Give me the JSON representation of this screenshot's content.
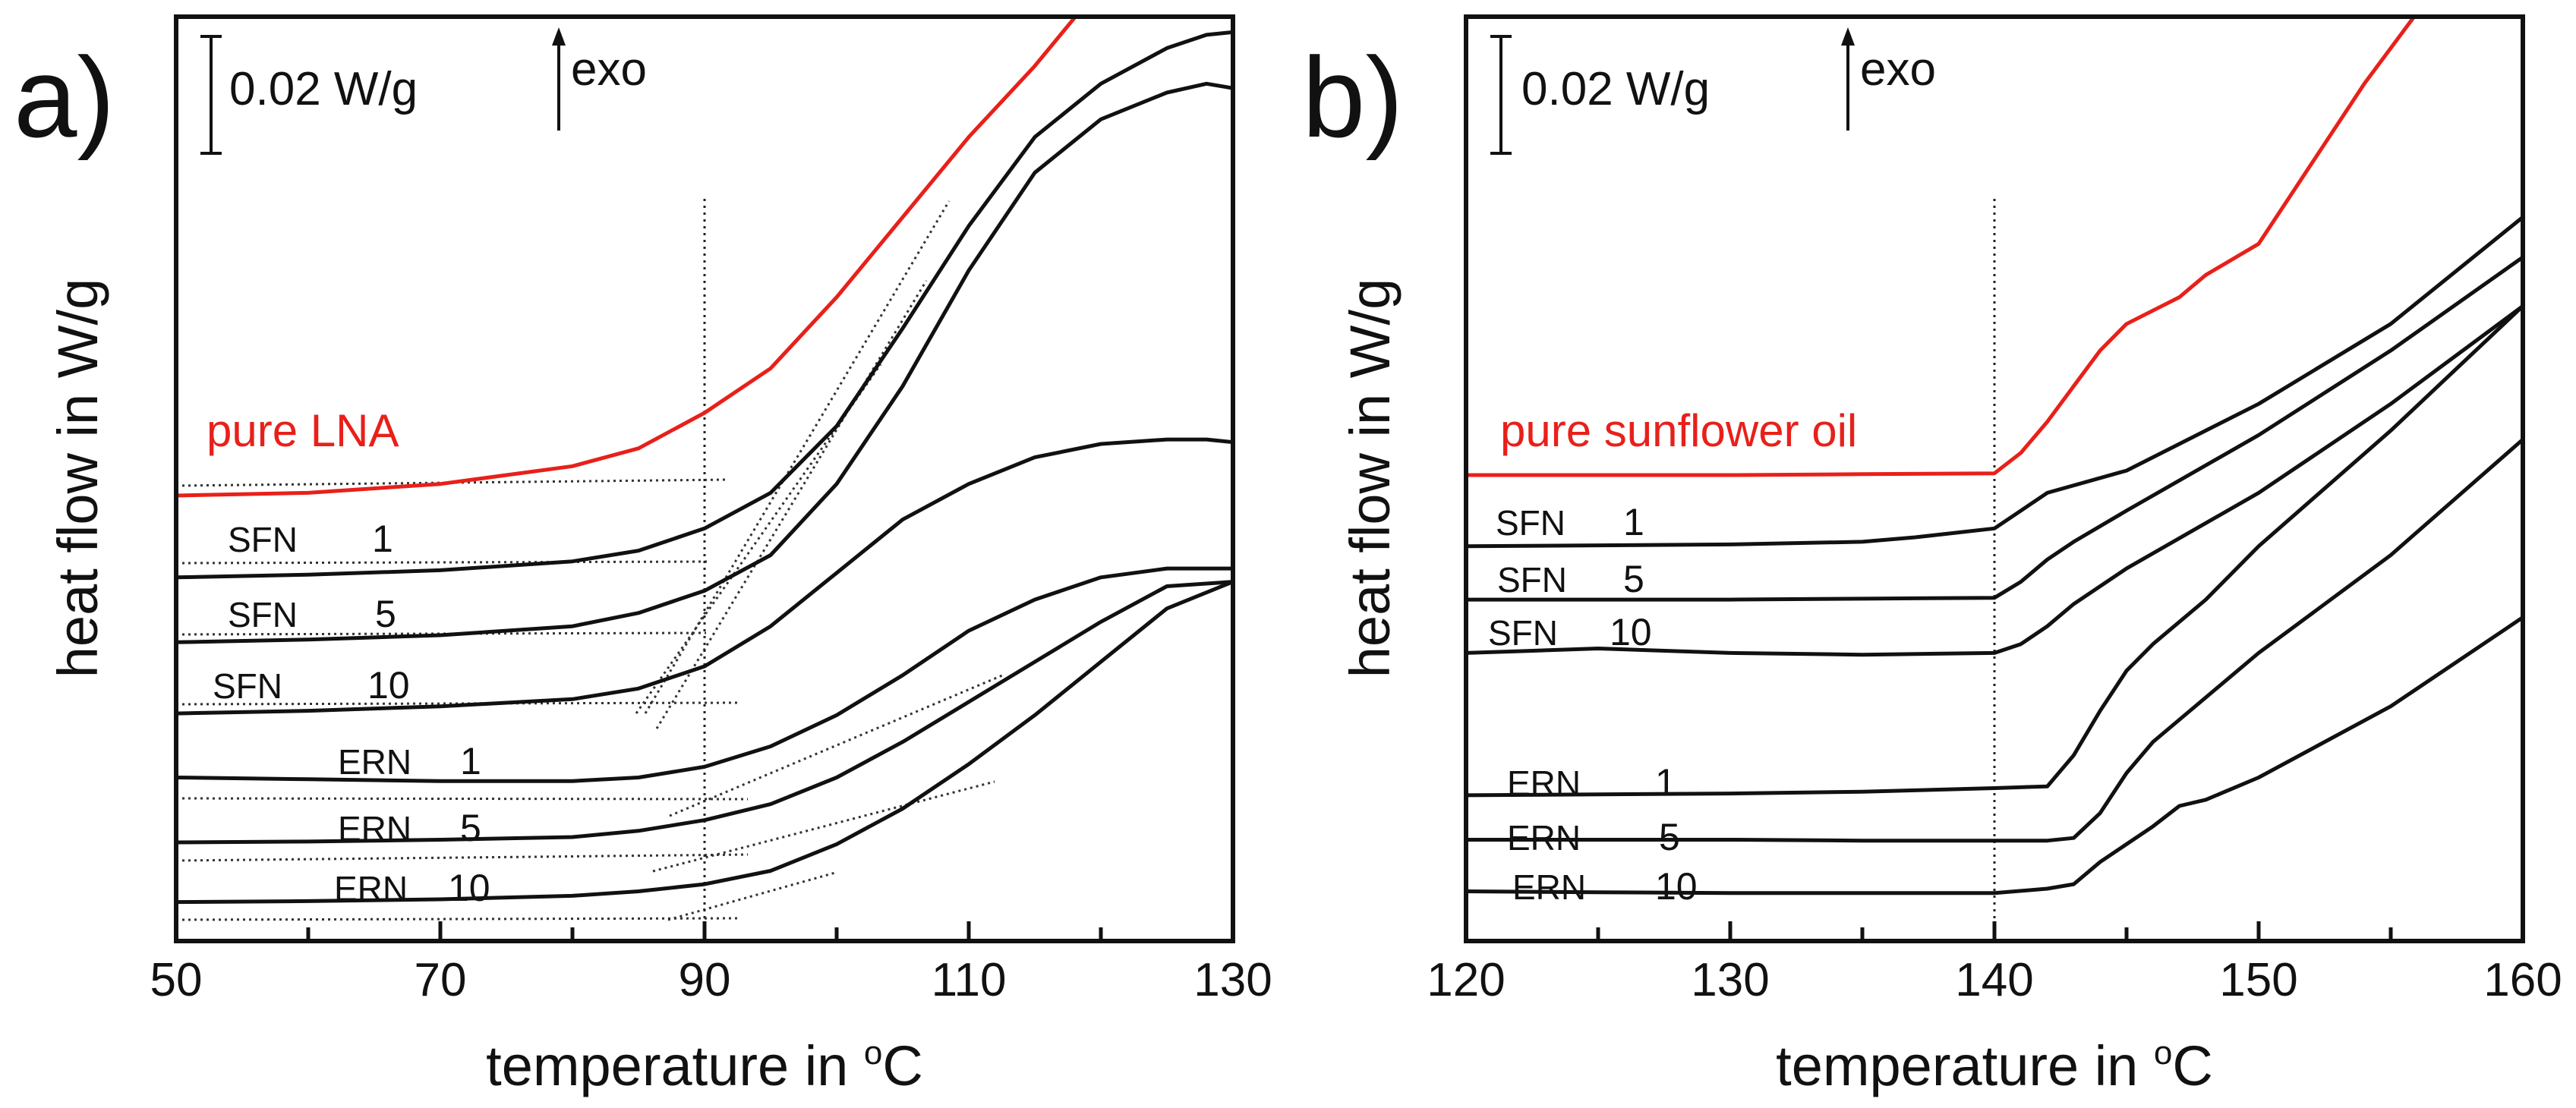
{
  "chart_data": [
    {
      "panel": "a)",
      "type": "line",
      "xlabel": "temperature  in ",
      "xlabel_sup": "o",
      "xlabel_unit": "C",
      "ylabel": "heat flow in W/g",
      "xlim": [
        50,
        130
      ],
      "ylim": [
        0,
        1
      ],
      "xticks": [
        50,
        70,
        90,
        110,
        130
      ],
      "scale_bar_label": "0.02 W/g",
      "exo_label": "exo",
      "reference_line_x": 90,
      "series": [
        {
          "name": "pure LNA",
          "num": "",
          "color": "#e8201a",
          "x": [
            50,
            60,
            70,
            80,
            85,
            90,
            95,
            100,
            105,
            110,
            115,
            120
          ],
          "y": [
            0.477,
            0.48,
            0.49,
            0.51,
            0.53,
            0.57,
            0.62,
            0.7,
            0.79,
            0.88,
            0.96,
            1.05
          ]
        },
        {
          "name": "SFN",
          "num": "1",
          "color": "#111111",
          "x": [
            50,
            60,
            70,
            80,
            85,
            90,
            95,
            100,
            105,
            110,
            115,
            120,
            125,
            128,
            130
          ],
          "y": [
            0.385,
            0.388,
            0.393,
            0.403,
            0.415,
            0.44,
            0.48,
            0.555,
            0.665,
            0.78,
            0.88,
            0.94,
            0.98,
            0.995,
            0.998
          ]
        },
        {
          "name": "SFN",
          "num": "5",
          "color": "#111111",
          "x": [
            50,
            60,
            70,
            80,
            85,
            90,
            95,
            100,
            105,
            110,
            115,
            120,
            125,
            128,
            130
          ],
          "y": [
            0.312,
            0.315,
            0.32,
            0.33,
            0.345,
            0.37,
            0.41,
            0.49,
            0.6,
            0.73,
            0.84,
            0.9,
            0.93,
            0.94,
            0.935
          ]
        },
        {
          "name": "SFN",
          "num": "10",
          "color": "#111111",
          "x": [
            50,
            60,
            70,
            80,
            85,
            90,
            95,
            100,
            105,
            110,
            115,
            120,
            125,
            128,
            130
          ],
          "y": [
            0.232,
            0.235,
            0.24,
            0.248,
            0.26,
            0.285,
            0.33,
            0.39,
            0.45,
            0.49,
            0.52,
            0.535,
            0.54,
            0.54,
            0.537
          ]
        },
        {
          "name": "ERN",
          "num": "1",
          "color": "#111111",
          "x": [
            50,
            60,
            70,
            80,
            85,
            90,
            95,
            100,
            105,
            110,
            115,
            120,
            125,
            130
          ],
          "y": [
            0.16,
            0.158,
            0.156,
            0.156,
            0.16,
            0.172,
            0.195,
            0.23,
            0.275,
            0.325,
            0.36,
            0.385,
            0.395,
            0.395
          ]
        },
        {
          "name": "ERN",
          "num": "5",
          "color": "#111111",
          "x": [
            50,
            60,
            70,
            80,
            85,
            90,
            95,
            100,
            105,
            110,
            115,
            120,
            125,
            130
          ],
          "y": [
            0.087,
            0.088,
            0.09,
            0.093,
            0.1,
            0.112,
            0.13,
            0.16,
            0.2,
            0.245,
            0.29,
            0.335,
            0.375,
            0.38
          ]
        },
        {
          "name": "ERN",
          "num": "10",
          "color": "#111111",
          "x": [
            50,
            60,
            70,
            80,
            85,
            90,
            95,
            100,
            105,
            110,
            115,
            120,
            125,
            130
          ],
          "y": [
            0.02,
            0.021,
            0.023,
            0.027,
            0.032,
            0.04,
            0.055,
            0.085,
            0.125,
            0.175,
            0.23,
            0.29,
            0.35,
            0.38
          ]
        }
      ],
      "annotation_text": [
        {
          "text": "pure LNA",
          "color": "#e8201a"
        },
        {
          "text": "SFN 1"
        },
        {
          "text": "SFN 5"
        },
        {
          "text": "SFN 10"
        },
        {
          "text": "ERN 1"
        },
        {
          "text": "ERN 5"
        },
        {
          "text": "ERN 10"
        }
      ]
    },
    {
      "panel": "b)",
      "type": "line",
      "xlabel": "temperature  in ",
      "xlabel_sup": "o",
      "xlabel_unit": "C",
      "ylabel": "heat flow in W/g",
      "xlim": [
        120,
        160
      ],
      "ylim": [
        0,
        1
      ],
      "xticks": [
        120,
        130,
        140,
        150,
        160
      ],
      "scale_bar_label": "0.02 W/g",
      "exo_label": "exo",
      "reference_line_x": 140,
      "series": [
        {
          "name": "pure sunflower oil",
          "num": "",
          "color": "#e8201a",
          "x": [
            120,
            125,
            130,
            135,
            140,
            141,
            142,
            143,
            144,
            145,
            146,
            147,
            148,
            150,
            152,
            154,
            156
          ],
          "y": [
            0.5,
            0.5,
            0.5,
            0.501,
            0.502,
            0.525,
            0.56,
            0.6,
            0.64,
            0.67,
            0.685,
            0.7,
            0.725,
            0.76,
            0.85,
            0.94,
            1.02
          ]
        },
        {
          "name": "SFN",
          "num": "1",
          "color": "#111111",
          "x": [
            120,
            125,
            130,
            135,
            137,
            140,
            141,
            142,
            145,
            150,
            155,
            160
          ],
          "y": [
            0.42,
            0.421,
            0.422,
            0.425,
            0.43,
            0.44,
            0.46,
            0.48,
            0.505,
            0.58,
            0.67,
            0.79
          ]
        },
        {
          "name": "SFN",
          "num": "5",
          "color": "#111111",
          "x": [
            120,
            125,
            130,
            135,
            140,
            141,
            142,
            143,
            145,
            150,
            155,
            160
          ],
          "y": [
            0.36,
            0.36,
            0.36,
            0.361,
            0.362,
            0.38,
            0.405,
            0.425,
            0.46,
            0.545,
            0.64,
            0.745
          ]
        },
        {
          "name": "SFN",
          "num": "10",
          "color": "#111111",
          "x": [
            120,
            122,
            125,
            130,
            135,
            140,
            141,
            142,
            143,
            145,
            150,
            155,
            160
          ],
          "y": [
            0.3,
            0.302,
            0.305,
            0.3,
            0.298,
            0.3,
            0.31,
            0.33,
            0.355,
            0.395,
            0.48,
            0.58,
            0.69
          ]
        },
        {
          "name": "ERN",
          "num": "1",
          "color": "#111111",
          "x": [
            120,
            125,
            130,
            135,
            140,
            142,
            143,
            144,
            145,
            146,
            148,
            150,
            155,
            160
          ],
          "y": [
            0.14,
            0.141,
            0.142,
            0.144,
            0.148,
            0.15,
            0.185,
            0.235,
            0.28,
            0.31,
            0.36,
            0.42,
            0.55,
            0.69
          ]
        },
        {
          "name": "ERN",
          "num": "5",
          "color": "#111111",
          "x": [
            120,
            125,
            130,
            135,
            140,
            142,
            143,
            144,
            145,
            146,
            148,
            150,
            155,
            160
          ],
          "y": [
            0.09,
            0.09,
            0.09,
            0.089,
            0.089,
            0.089,
            0.092,
            0.12,
            0.165,
            0.2,
            0.25,
            0.3,
            0.41,
            0.54
          ]
        },
        {
          "name": "ERN",
          "num": "10",
          "color": "#111111",
          "x": [
            120,
            125,
            130,
            135,
            140,
            142,
            143,
            144,
            146,
            147,
            148,
            150,
            155,
            160
          ],
          "y": [
            0.032,
            0.031,
            0.03,
            0.03,
            0.03,
            0.035,
            0.04,
            0.065,
            0.105,
            0.128,
            0.135,
            0.16,
            0.24,
            0.34
          ]
        }
      ],
      "annotation_text": [
        {
          "text": "pure sunflower oil",
          "color": "#e8201a"
        },
        {
          "text": "SFN 1"
        },
        {
          "text": "SFN 5"
        },
        {
          "text": "SFN 10"
        },
        {
          "text": "ERN 1"
        },
        {
          "text": "ERN 5"
        },
        {
          "text": "ERN 10"
        }
      ]
    }
  ]
}
